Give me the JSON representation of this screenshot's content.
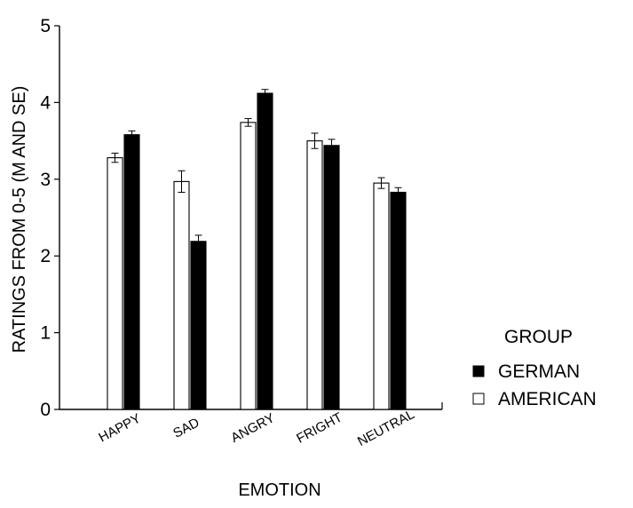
{
  "chart_data": {
    "type": "bar",
    "title": "",
    "xlabel": "EMOTION",
    "ylabel": "RATINGS FROM 0-5  (M AND SE)",
    "ylim": [
      0,
      5
    ],
    "yticks": [
      "0",
      "1",
      "2",
      "3",
      "4",
      "5"
    ],
    "categories": [
      "HAPPY",
      "SAD",
      "ANGRY",
      "FRIGHT",
      "NEUTRAL"
    ],
    "series": [
      {
        "name": "AMERICAN",
        "color": "#ffffff",
        "values": [
          3.28,
          2.97,
          3.74,
          3.5,
          2.95
        ],
        "se": [
          0.06,
          0.14,
          0.05,
          0.1,
          0.07
        ]
      },
      {
        "name": "GERMAN",
        "color": "#000000",
        "values": [
          3.58,
          2.19,
          4.12,
          3.44,
          2.83
        ],
        "se": [
          0.05,
          0.08,
          0.05,
          0.08,
          0.06
        ]
      }
    ],
    "grid": false,
    "legend": {
      "title": "GROUP",
      "position": "right",
      "entries": [
        "GERMAN",
        "AMERICAN"
      ]
    }
  }
}
